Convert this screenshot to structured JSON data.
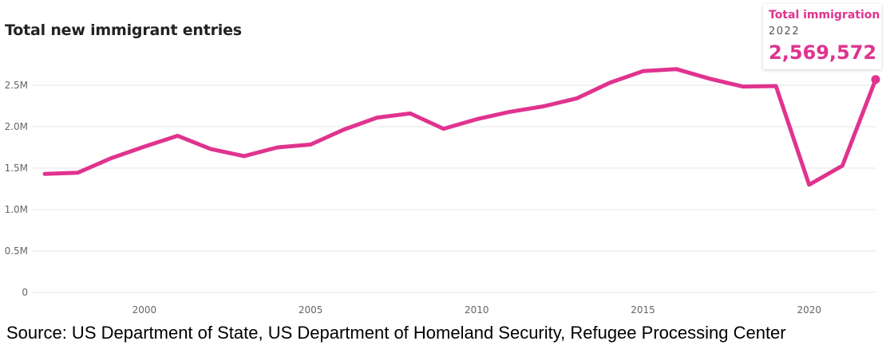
{
  "chart_data": {
    "type": "line",
    "title": "Total new immigrant entries",
    "source": "Source: US Department of State, US Department of Homeland Security, Refugee Processing Center",
    "x": [
      1997,
      1998,
      1999,
      2000,
      2001,
      2002,
      2003,
      2004,
      2005,
      2006,
      2007,
      2008,
      2009,
      2010,
      2011,
      2012,
      2013,
      2014,
      2015,
      2016,
      2017,
      2018,
      2019,
      2020,
      2021,
      2022
    ],
    "series": [
      {
        "name": "Total immigration",
        "color": "#e0338f",
        "values": [
          1430000,
          1445000,
          1620000,
          1760000,
          1890000,
          1730000,
          1645000,
          1750000,
          1785000,
          1965000,
          2110000,
          2160000,
          1975000,
          2090000,
          2180000,
          2245000,
          2340000,
          2530000,
          2670000,
          2695000,
          2580000,
          2485000,
          2490000,
          1300000,
          1530000,
          2569572
        ]
      }
    ],
    "xticks": [
      2000,
      2005,
      2010,
      2015,
      2020
    ],
    "xtick_labels": [
      "2000",
      "2005",
      "2010",
      "2015",
      "2020"
    ],
    "yticks": [
      0,
      500000,
      1000000,
      1500000,
      2000000,
      2500000
    ],
    "ytick_labels": [
      "0",
      "0.5M",
      "1.0M",
      "1.5M",
      "2.0M",
      "2.5M"
    ],
    "xlim": [
      1997,
      2022
    ],
    "ylim": [
      0,
      2750000
    ],
    "grid": true,
    "tooltip": {
      "series": "Total immigration",
      "year": "2022",
      "value": "2,569,572"
    }
  }
}
